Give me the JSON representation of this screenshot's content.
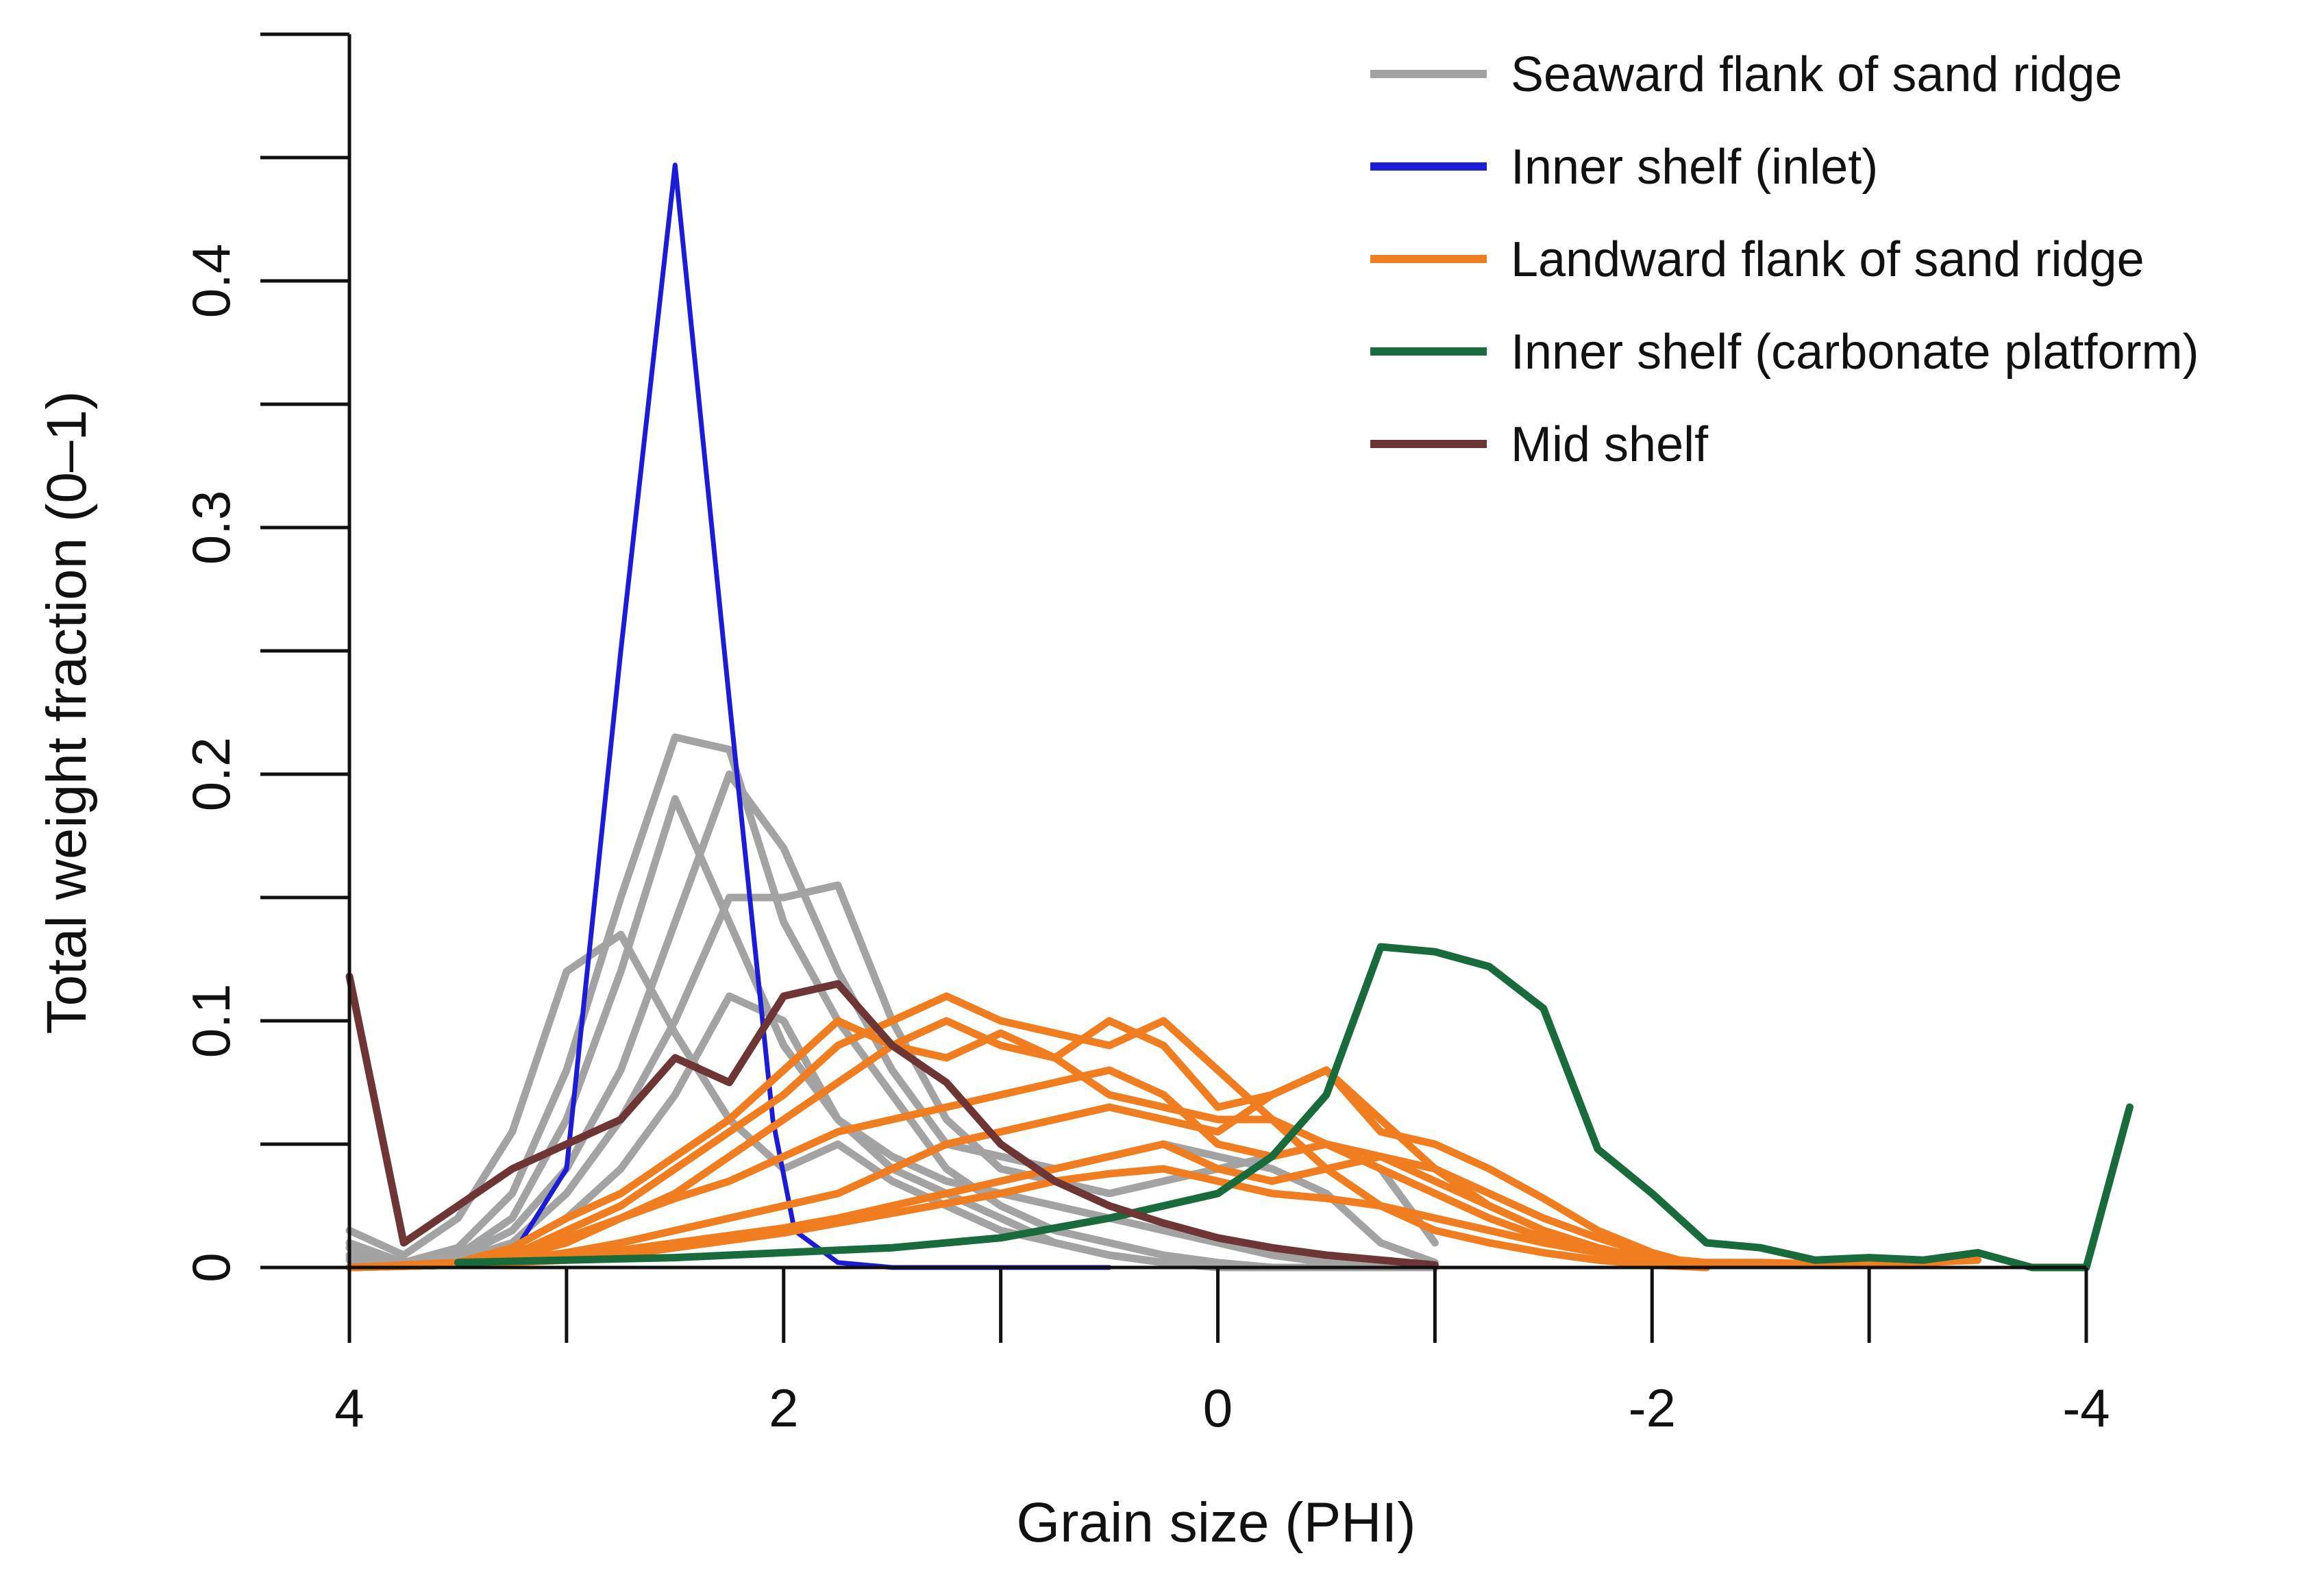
{
  "chart_data": {
    "type": "line",
    "title": "",
    "xlabel": "Grain size (PHI)",
    "ylabel": "Total weight fraction (0–1)",
    "xlim": [
      4,
      -4
    ],
    "ylim": [
      0,
      0.5
    ],
    "x_ticks": [
      4,
      3,
      2,
      1,
      0,
      -1,
      -2,
      -3,
      -4
    ],
    "x_tick_labels": [
      {
        "value": 4,
        "label": "4"
      },
      {
        "value": 2,
        "label": "2"
      },
      {
        "value": 0,
        "label": "0"
      },
      {
        "value": -2,
        "label": "-2"
      },
      {
        "value": -4,
        "label": "-4"
      }
    ],
    "y_ticks": [
      0,
      0.05,
      0.1,
      0.15,
      0.2,
      0.25,
      0.3,
      0.35,
      0.4,
      0.45,
      0.5
    ],
    "y_tick_labels": [
      {
        "value": 0,
        "label": "0"
      },
      {
        "value": 0.1,
        "label": "0.1"
      },
      {
        "value": 0.2,
        "label": "0.2"
      },
      {
        "value": 0.3,
        "label": "0.3"
      },
      {
        "value": 0.4,
        "label": "0.4"
      }
    ],
    "legend_position": "top-right",
    "legend": [
      {
        "label": "Seaward flank of sand ridge",
        "color": "#a3a3a3"
      },
      {
        "label": "Inner shelf (inlet)",
        "color": "#1c1cd6"
      },
      {
        "label": "Landward flank of sand ridge",
        "color": "#f07d1f"
      },
      {
        "label": "Inner shelf (carbonate platform)",
        "color": "#1a6b3c"
      },
      {
        "label": "Mid shelf",
        "color": "#6e3535"
      }
    ],
    "series": [
      {
        "name": "Seaward flank of sand ridge",
        "color": "#a3a3a3",
        "x": [
          4,
          3.75,
          3.5,
          3.25,
          3,
          2.75,
          2.5,
          2.25,
          2,
          1.75,
          1.5,
          1.25,
          1,
          0.75,
          0.5,
          0.25,
          0,
          -0.25,
          -0.5,
          -0.75,
          -1
        ],
        "y": [
          0.015,
          0.005,
          0.02,
          0.055,
          0.12,
          0.135,
          0.095,
          0.06,
          0.04,
          0.05,
          0.035,
          0.025,
          0.015,
          0.01,
          0.005,
          0.002,
          0,
          0,
          0,
          0,
          0
        ]
      },
      {
        "name": "Seaward flank of sand ridge",
        "color": "#a3a3a3",
        "x": [
          4,
          3.75,
          3.5,
          3.25,
          3,
          2.75,
          2.5,
          2.25,
          2,
          1.75,
          1.5,
          1.25,
          1,
          0.75,
          0.5,
          0.25,
          0,
          -0.25,
          -0.5,
          -0.75,
          -1
        ],
        "y": [
          0.01,
          0.002,
          0.008,
          0.03,
          0.08,
          0.15,
          0.215,
          0.21,
          0.14,
          0.1,
          0.07,
          0.04,
          0.025,
          0.015,
          0.01,
          0.005,
          0.002,
          0,
          0,
          0,
          0
        ]
      },
      {
        "name": "Seaward flank of sand ridge",
        "color": "#a3a3a3",
        "x": [
          4,
          3.75,
          3.5,
          3.25,
          3,
          2.75,
          2.5,
          2.25,
          2,
          1.75,
          1.5,
          1.25,
          1,
          0.75,
          0.5,
          0.25,
          0,
          -0.25,
          -0.5,
          -0.75,
          -1
        ],
        "y": [
          0.008,
          0.002,
          0.005,
          0.02,
          0.06,
          0.12,
          0.19,
          0.14,
          0.09,
          0.06,
          0.04,
          0.03,
          0.02,
          0.01,
          0.005,
          0.002,
          0,
          0,
          0,
          0,
          0
        ]
      },
      {
        "name": "Seaward flank of sand ridge",
        "color": "#a3a3a3",
        "x": [
          4,
          3.75,
          3.5,
          3.25,
          3,
          2.75,
          2.5,
          2.25,
          2,
          1.75,
          1.5,
          1.25,
          1,
          0.75,
          0.5,
          0.25,
          0,
          -0.25,
          -0.5,
          -0.75,
          -1
        ],
        "y": [
          0.005,
          0.001,
          0.004,
          0.015,
          0.04,
          0.08,
          0.14,
          0.2,
          0.17,
          0.12,
          0.08,
          0.05,
          0.045,
          0.04,
          0.045,
          0.05,
          0.045,
          0.04,
          0.03,
          0.01,
          0.002
        ]
      },
      {
        "name": "Seaward flank of sand ridge",
        "color": "#a3a3a3",
        "x": [
          4,
          3.75,
          3.5,
          3.25,
          3,
          2.75,
          2.5,
          2.25,
          2,
          1.75,
          1.5,
          1.25,
          1,
          0.75,
          0.5,
          0.25,
          0,
          -0.25,
          -0.5,
          -0.75,
          -1
        ],
        "y": [
          0.004,
          0.001,
          0.003,
          0.01,
          0.03,
          0.06,
          0.1,
          0.15,
          0.15,
          0.155,
          0.1,
          0.06,
          0.04,
          0.035,
          0.03,
          0.035,
          0.04,
          0.045,
          0.05,
          0.04,
          0.01
        ]
      },
      {
        "name": "Seaward flank of sand ridge",
        "color": "#a3a3a3",
        "x": [
          4,
          3.75,
          3.5,
          3.25,
          3,
          2.75,
          2.5,
          2.25,
          2,
          1.75,
          1.5,
          1.25,
          1,
          0.75,
          0.5,
          0.25,
          0,
          -0.25,
          -0.5,
          -0.75,
          -1
        ],
        "y": [
          0.003,
          0.001,
          0.002,
          0.008,
          0.02,
          0.04,
          0.07,
          0.11,
          0.1,
          0.06,
          0.045,
          0.035,
          0.03,
          0.025,
          0.02,
          0.015,
          0.01,
          0.005,
          0.002,
          0,
          0
        ]
      },
      {
        "name": "Inner shelf (inlet)",
        "color": "#1c1cd6",
        "x": [
          4,
          3.5,
          3.25,
          3,
          2.75,
          2.5,
          2.25,
          2.05,
          1.95,
          1.75,
          1.5,
          1,
          0.5
        ],
        "y": [
          0,
          0.001,
          0.005,
          0.04,
          0.25,
          0.447,
          0.23,
          0.06,
          0.015,
          0.002,
          0,
          0,
          0
        ]
      },
      {
        "name": "Landward flank of sand ridge",
        "color": "#f07d1f",
        "x": [
          4,
          3.5,
          3.25,
          3,
          2.75,
          2.5,
          2.25,
          2,
          1.75,
          1.5,
          1.25,
          1,
          0.75,
          0.5,
          0.25,
          0,
          -0.25,
          -0.5,
          -0.75,
          -1,
          -1.25,
          -1.5,
          -1.75,
          -2,
          -2.25
        ],
        "y": [
          0,
          0.002,
          0.008,
          0.02,
          0.03,
          0.045,
          0.06,
          0.08,
          0.1,
          0.09,
          0.085,
          0.095,
          0.085,
          0.07,
          0.065,
          0.06,
          0.06,
          0.05,
          0.04,
          0.03,
          0.02,
          0.012,
          0.006,
          0.002,
          0
        ]
      },
      {
        "name": "Landward flank of sand ridge",
        "color": "#f07d1f",
        "x": [
          4,
          3.5,
          3.25,
          3,
          2.75,
          2.5,
          2.25,
          2,
          1.75,
          1.5,
          1.25,
          1,
          0.75,
          0.5,
          0.25,
          0,
          -0.25,
          -0.5,
          -0.75,
          -1,
          -1.25,
          -1.5,
          -1.75,
          -2,
          -2.25
        ],
        "y": [
          0,
          0.001,
          0.005,
          0.015,
          0.025,
          0.04,
          0.055,
          0.07,
          0.09,
          0.1,
          0.11,
          0.1,
          0.095,
          0.09,
          0.1,
          0.08,
          0.06,
          0.04,
          0.025,
          0.015,
          0.01,
          0.006,
          0.003,
          0.001,
          0
        ]
      },
      {
        "name": "Landward flank of sand ridge",
        "color": "#f07d1f",
        "x": [
          4,
          3.5,
          3.25,
          3,
          2.75,
          2.5,
          2.25,
          2,
          1.75,
          1.5,
          1.25,
          1,
          0.75,
          0.5,
          0.25,
          0,
          -0.25,
          -0.5,
          -0.75,
          -1,
          -1.25,
          -1.5,
          -1.75,
          -2,
          -2.25
        ],
        "y": [
          0,
          0.001,
          0.004,
          0.01,
          0.02,
          0.03,
          0.045,
          0.06,
          0.075,
          0.09,
          0.1,
          0.09,
          0.085,
          0.1,
          0.09,
          0.065,
          0.07,
          0.08,
          0.06,
          0.04,
          0.025,
          0.015,
          0.008,
          0.003,
          0
        ]
      },
      {
        "name": "Landward flank of sand ridge",
        "color": "#f07d1f",
        "x": [
          4,
          3.5,
          3.25,
          3,
          2.75,
          2.5,
          2.25,
          2,
          1.75,
          1.5,
          1.25,
          1,
          0.75,
          0.5,
          0.25,
          0,
          -0.25,
          -0.5,
          -0.75,
          -1,
          -1.25,
          -1.5,
          -1.75,
          -2,
          -2.25
        ],
        "y": [
          0,
          0.002,
          0.006,
          0.012,
          0.02,
          0.028,
          0.035,
          0.045,
          0.055,
          0.06,
          0.065,
          0.07,
          0.075,
          0.08,
          0.07,
          0.05,
          0.045,
          0.05,
          0.045,
          0.035,
          0.025,
          0.015,
          0.008,
          0.003,
          0
        ]
      },
      {
        "name": "Landward flank of sand ridge",
        "color": "#f07d1f",
        "x": [
          4,
          3.5,
          3.25,
          3,
          2.75,
          2.5,
          2.25,
          2,
          1.75,
          1.5,
          1.25,
          1,
          0.75,
          0.5,
          0.25,
          0,
          -0.25,
          -0.5,
          -0.75,
          -1,
          -1.25,
          -1.5,
          -1.75,
          -2,
          -2.25
        ],
        "y": [
          0,
          0.001,
          0.003,
          0.006,
          0.01,
          0.015,
          0.02,
          0.025,
          0.03,
          0.04,
          0.05,
          0.055,
          0.06,
          0.065,
          0.06,
          0.055,
          0.07,
          0.08,
          0.055,
          0.05,
          0.04,
          0.028,
          0.015,
          0.006,
          0
        ]
      },
      {
        "name": "Landward flank of sand ridge",
        "color": "#f07d1f",
        "x": [
          4,
          3.5,
          3.25,
          3,
          2.75,
          2.5,
          2.25,
          2,
          1.75,
          1.5,
          1.25,
          1,
          0.75,
          0.5,
          0.25,
          0,
          -0.25,
          -0.5,
          -0.75,
          -1,
          -1.25,
          -1.5,
          -1.75,
          -2,
          -2.25
        ],
        "y": [
          0,
          0.001,
          0.002,
          0.004,
          0.007,
          0.01,
          0.013,
          0.016,
          0.02,
          0.025,
          0.03,
          0.035,
          0.04,
          0.045,
          0.05,
          0.04,
          0.035,
          0.04,
          0.045,
          0.04,
          0.03,
          0.02,
          0.012,
          0.005,
          0
        ]
      },
      {
        "name": "Landward flank of sand ridge",
        "color": "#f07d1f",
        "x": [
          4,
          3.5,
          3.25,
          3,
          2.75,
          2.5,
          2.25,
          2,
          1.75,
          1.5,
          1.25,
          1,
          0.75,
          0.5,
          0.25,
          0,
          -0.25,
          -0.5,
          -0.75,
          -1,
          -1.25,
          -1.5,
          -1.75,
          -2,
          -2.25,
          -2.5,
          -3,
          -3.5
        ],
        "y": [
          0,
          0.001,
          0.002,
          0.003,
          0.005,
          0.008,
          0.011,
          0.014,
          0.018,
          0.022,
          0.026,
          0.03,
          0.035,
          0.038,
          0.04,
          0.035,
          0.03,
          0.028,
          0.025,
          0.02,
          0.015,
          0.01,
          0.006,
          0.004,
          0.002,
          0.002,
          0.001,
          0.003
        ]
      },
      {
        "name": "Inner shelf (carbonate platform)",
        "color": "#1a6b3c",
        "x": [
          3.5,
          3,
          2.5,
          2,
          1.5,
          1.25,
          1,
          0.75,
          0.5,
          0.25,
          0,
          -0.25,
          -0.5,
          -0.75,
          -1,
          -1.25,
          -1.5,
          -1.75,
          -2,
          -2.25,
          -2.5,
          -2.75,
          -3,
          -3.25,
          -3.5,
          -3.75,
          -4,
          -4.2
        ],
        "y": [
          0.002,
          0.003,
          0.004,
          0.006,
          0.008,
          0.01,
          0.012,
          0.016,
          0.02,
          0.025,
          0.03,
          0.045,
          0.07,
          0.13,
          0.128,
          0.122,
          0.105,
          0.048,
          0.03,
          0.01,
          0.008,
          0.003,
          0.004,
          0.003,
          0.006,
          0,
          0,
          0.065
        ]
      },
      {
        "name": "Mid shelf",
        "color": "#6e3535",
        "x": [
          4,
          3.75,
          3.5,
          3.25,
          3,
          2.75,
          2.5,
          2.25,
          2,
          1.75,
          1.5,
          1.25,
          1,
          0.75,
          0.5,
          0.25,
          0,
          -0.25,
          -0.5,
          -0.75,
          -1
        ],
        "y": [
          0.118,
          0.01,
          0.025,
          0.04,
          0.05,
          0.06,
          0.085,
          0.075,
          0.11,
          0.115,
          0.09,
          0.075,
          0.05,
          0.035,
          0.025,
          0.018,
          0.012,
          0.008,
          0.005,
          0.003,
          0.001
        ]
      }
    ]
  }
}
